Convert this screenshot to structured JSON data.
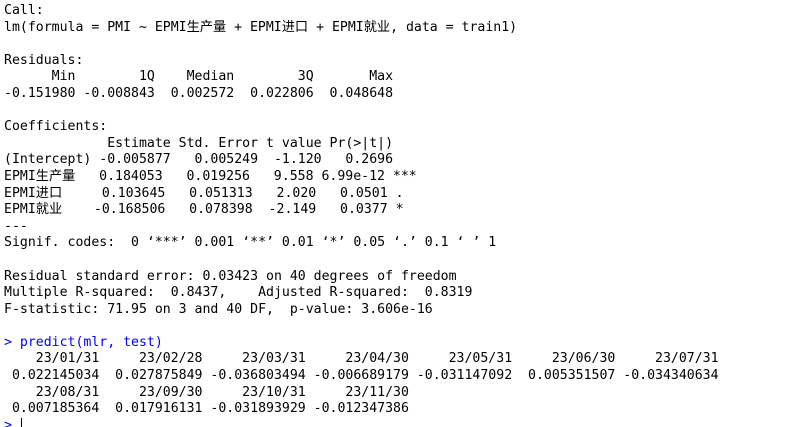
{
  "console": {
    "prompt": "> ",
    "lines": [
      {
        "kind": "output",
        "text": "Call:"
      },
      {
        "kind": "output",
        "text": "lm(formula = PMI ~ EPMI生产量 + EPMI进口 + EPMI就业, data = train1)"
      },
      {
        "kind": "output",
        "text": ""
      },
      {
        "kind": "output",
        "text": "Residuals:"
      },
      {
        "kind": "output",
        "text": "      Min        1Q    Median        3Q       Max "
      },
      {
        "kind": "output",
        "text": "-0.151980 -0.008843  0.002572  0.022806  0.048648 "
      },
      {
        "kind": "output",
        "text": ""
      },
      {
        "kind": "output",
        "text": "Coefficients:"
      },
      {
        "kind": "output",
        "text": "             Estimate Std. Error t value Pr(>|t|)    "
      },
      {
        "kind": "output",
        "text": "(Intercept) -0.005877   0.005249  -1.120   0.2696    "
      },
      {
        "kind": "output",
        "text": "EPMI生产量   0.184053   0.019256   9.558 6.99e-12 ***"
      },
      {
        "kind": "output",
        "text": "EPMI进口     0.103645   0.051313   2.020   0.0501 .  "
      },
      {
        "kind": "output",
        "text": "EPMI就业    -0.168506   0.078398  -2.149   0.0377 *  "
      },
      {
        "kind": "output",
        "text": "---"
      },
      {
        "kind": "output",
        "text": "Signif. codes:  0 ‘***’ 0.001 ‘**’ 0.01 ‘*’ 0.05 ‘.’ 0.1 ‘ ’ 1"
      },
      {
        "kind": "output",
        "text": ""
      },
      {
        "kind": "output",
        "text": "Residual standard error: 0.03423 on 40 degrees of freedom"
      },
      {
        "kind": "output",
        "text": "Multiple R-squared:  0.8437,    Adjusted R-squared:  0.8319 "
      },
      {
        "kind": "output",
        "text": "F-statistic: 71.95 on 3 and 40 DF,  p-value: 3.606e-16"
      },
      {
        "kind": "output",
        "text": ""
      },
      {
        "kind": "input",
        "text": "> predict(mlr, test)"
      },
      {
        "kind": "output",
        "text": "    23/01/31     23/02/28     23/03/31     23/04/30     23/05/31     23/06/30     23/07/31 "
      },
      {
        "kind": "output",
        "text": " 0.022145034  0.027875849 -0.036803494 -0.006689179 -0.031147092  0.005351507 -0.034340634 "
      },
      {
        "kind": "output",
        "text": "    23/08/31     23/09/30     23/10/31     23/11/30 "
      },
      {
        "kind": "output",
        "text": " 0.007185364  0.017916131 -0.031893929 -0.012347386 "
      }
    ]
  },
  "colors": {
    "background": "#ffffff",
    "output_text": "#000000",
    "input_text": "#0000ff"
  }
}
